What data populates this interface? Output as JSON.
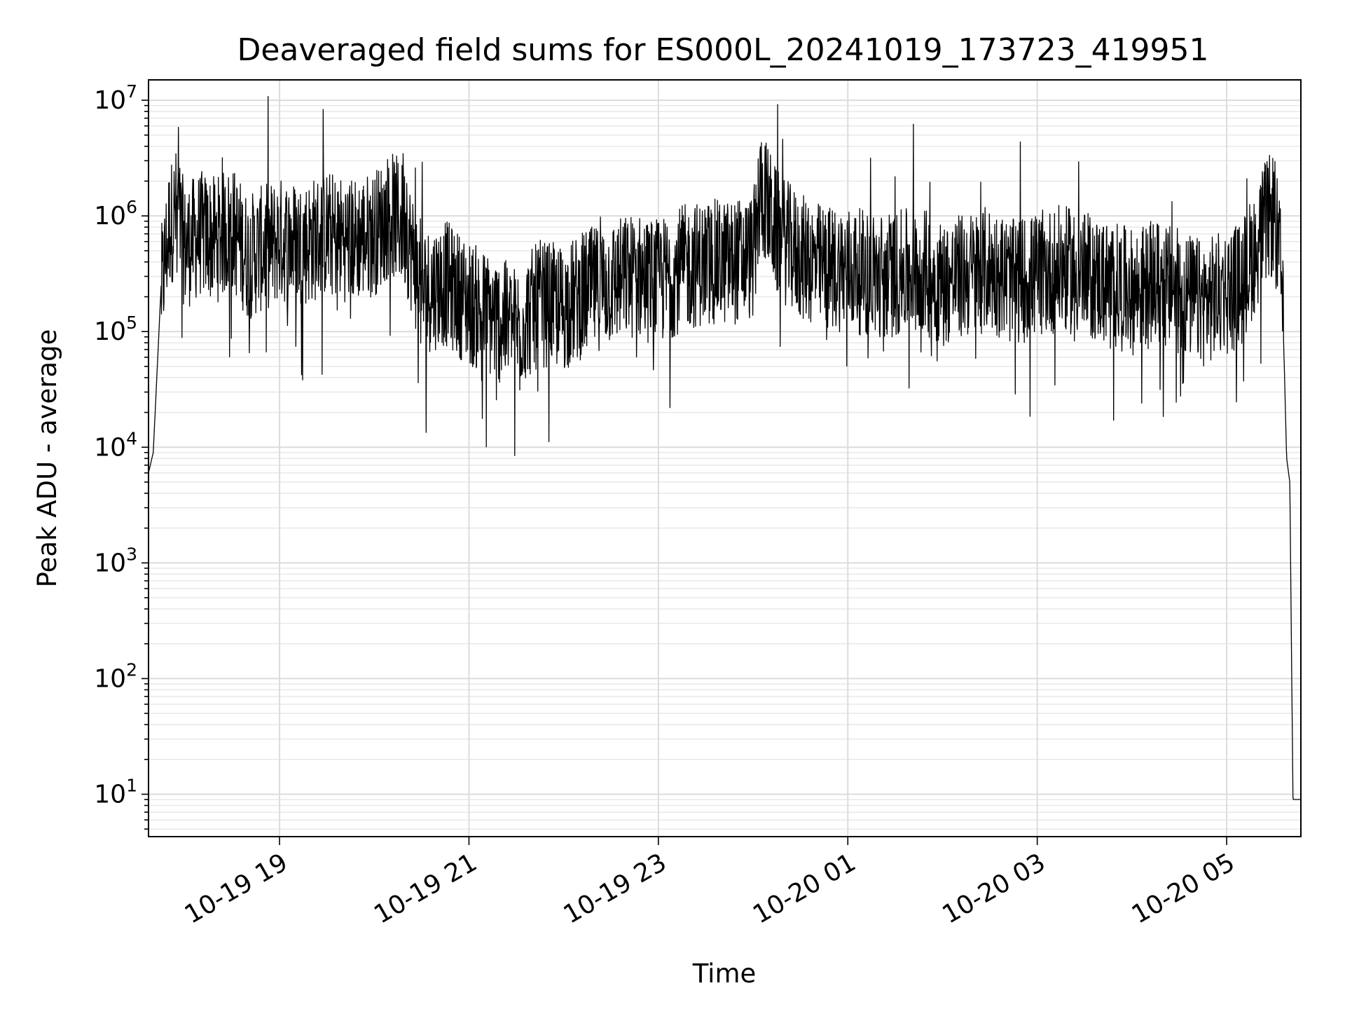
{
  "chart_data": {
    "type": "line",
    "title": "Deaveraged field sums for ES000L_20241019_173723_419951",
    "xlabel": "Time",
    "ylabel": "Peak ADU - average",
    "yscale": "log",
    "ylim": [
      4.3,
      15000000
    ],
    "xlim": [
      "2024-10-19 17:37",
      "2024-10-20 05:47"
    ],
    "grid": "on (major and minor)",
    "line_color": "#000000",
    "x_ticks": [
      "10-19 19",
      "10-19 21",
      "10-19 23",
      "10-20 01",
      "10-20 03",
      "10-20 05"
    ],
    "y_ticks": [
      {
        "base": "10",
        "exp": "1",
        "value": 10
      },
      {
        "base": "10",
        "exp": "2",
        "value": 100
      },
      {
        "base": "10",
        "exp": "3",
        "value": 1000
      },
      {
        "base": "10",
        "exp": "4",
        "value": 10000
      },
      {
        "base": "10",
        "exp": "5",
        "value": 100000
      },
      {
        "base": "10",
        "exp": "6",
        "value": 1000000
      },
      {
        "base": "10",
        "exp": "7",
        "value": 10000000
      }
    ],
    "series": [
      {
        "x": [
          "2024-10-19 17:37",
          "2024-10-19 17:40",
          "2024-10-19 17:45",
          "2024-10-19 17:50",
          "2024-10-19 17:55",
          "2024-10-19 18:00",
          "2024-10-19 18:10",
          "2024-10-19 18:20",
          "2024-10-19 18:30",
          "2024-10-19 18:40",
          "2024-10-19 18:50",
          "2024-10-19 19:00",
          "2024-10-19 19:15",
          "2024-10-19 19:30",
          "2024-10-19 19:45",
          "2024-10-19 20:00",
          "2024-10-19 20:10",
          "2024-10-19 20:20",
          "2024-10-19 20:30",
          "2024-10-19 20:45",
          "2024-10-19 21:00",
          "2024-10-19 21:15",
          "2024-10-19 21:30",
          "2024-10-19 21:45",
          "2024-10-19 22:00",
          "2024-10-19 22:15",
          "2024-10-19 22:30",
          "2024-10-19 22:45",
          "2024-10-19 23:00",
          "2024-10-19 23:15",
          "2024-10-19 23:30",
          "2024-10-19 23:45",
          "2024-10-20 00:00",
          "2024-10-20 00:05",
          "2024-10-20 00:15",
          "2024-10-20 00:30",
          "2024-10-20 00:45",
          "2024-10-20 01:00",
          "2024-10-20 01:15",
          "2024-10-20 01:30",
          "2024-10-20 01:45",
          "2024-10-20 02:00",
          "2024-10-20 02:15",
          "2024-10-20 02:30",
          "2024-10-20 02:45",
          "2024-10-20 03:00",
          "2024-10-20 03:15",
          "2024-10-20 03:30",
          "2024-10-20 03:45",
          "2024-10-20 04:00",
          "2024-10-20 04:15",
          "2024-10-20 04:30",
          "2024-10-20 04:45",
          "2024-10-20 05:00",
          "2024-10-20 05:10",
          "2024-10-20 05:20",
          "2024-10-20 05:25",
          "2024-10-20 05:30",
          "2024-10-20 05:35",
          "2024-10-20 05:38",
          "2024-10-20 05:40",
          "2024-10-20 05:42",
          "2024-10-20 05:47"
        ],
        "y": [
          6000,
          9000,
          250000,
          900000,
          1300000,
          600000,
          800000,
          700000,
          900000,
          500000,
          600000,
          700000,
          650000,
          800000,
          700000,
          800000,
          1200000,
          900000,
          250000,
          300000,
          200000,
          150000,
          120000,
          200000,
          180000,
          250000,
          300000,
          350000,
          300000,
          400000,
          450000,
          450000,
          500000,
          2000000,
          800000,
          500000,
          400000,
          400000,
          350000,
          350000,
          400000,
          300000,
          350000,
          400000,
          300000,
          350000,
          400000,
          350000,
          300000,
          250000,
          300000,
          250000,
          200000,
          250000,
          300000,
          700000,
          1000000,
          1200000,
          300000,
          8000,
          5000,
          9,
          9
        ]
      }
    ]
  }
}
